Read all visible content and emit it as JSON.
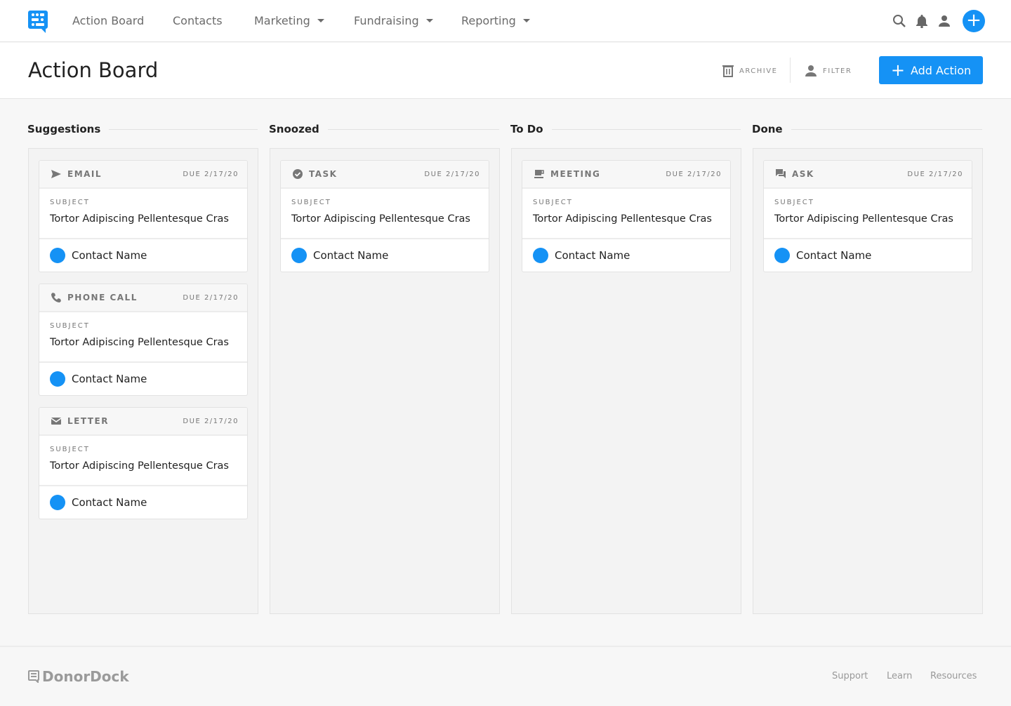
{
  "nav": {
    "items": [
      {
        "label": "Action Board"
      },
      {
        "label": "Contacts"
      },
      {
        "label": "Marketing"
      },
      {
        "label": "Fundraising"
      },
      {
        "label": "Reporting"
      }
    ]
  },
  "header": {
    "title": "Action Board",
    "archive": "ARCHIVE",
    "filter": "FILTER",
    "add": "Add Action"
  },
  "columns": [
    {
      "title": "Suggestions",
      "cards": [
        {
          "type": "EMAIL",
          "icon": "send-icon",
          "due": "DUE 2/17/20",
          "subject_label": "SUBJECT",
          "subject": "Tortor Adipiscing Pellentesque Cras",
          "contact": "Contact Name"
        },
        {
          "type": "PHONE CALL",
          "icon": "phone-icon",
          "due": "DUE 2/17/20",
          "subject_label": "SUBJECT",
          "subject": "Tortor Adipiscing Pellentesque Cras",
          "contact": "Contact Name"
        },
        {
          "type": "LETTER",
          "icon": "mail-icon",
          "due": "DUE 2/17/20",
          "subject_label": "SUBJECT",
          "subject": "Tortor Adipiscing Pellentesque Cras",
          "contact": "Contact Name"
        }
      ]
    },
    {
      "title": "Snoozed",
      "cards": [
        {
          "type": "TASK",
          "icon": "check-circle-icon",
          "due": "DUE 2/17/20",
          "subject_label": "SUBJECT",
          "subject": "Tortor Adipiscing Pellentesque Cras",
          "contact": "Contact Name"
        }
      ]
    },
    {
      "title": "To Do",
      "cards": [
        {
          "type": "MEETING",
          "icon": "coffee-icon",
          "due": "DUE 2/17/20",
          "subject_label": "SUBJECT",
          "subject": "Tortor Adipiscing Pellentesque Cras",
          "contact": "Contact Name"
        }
      ]
    },
    {
      "title": "Done",
      "cards": [
        {
          "type": "ASK",
          "icon": "chat-icon",
          "due": "DUE 2/17/20",
          "subject_label": "SUBJECT",
          "subject": "Tortor Adipiscing Pellentesque Cras",
          "contact": "Contact Name"
        }
      ]
    }
  ],
  "footer": {
    "brand": "DonorDock",
    "links": [
      {
        "label": "Support"
      },
      {
        "label": "Learn"
      },
      {
        "label": "Resources"
      }
    ]
  },
  "colors": {
    "accent": "#1592f5"
  }
}
